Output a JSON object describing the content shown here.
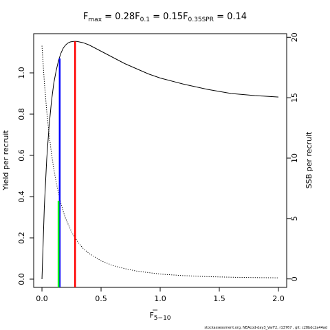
{
  "title": {
    "fmax_label": "F",
    "fmax_sub": "max",
    "fmax_value": " = 0.28",
    "f01_label": "F",
    "f01_sub": "0.1",
    "f01_value": " = 0.15",
    "fspr_label": "F",
    "fspr_sub": "0.35SPR",
    "fspr_value": " = 0.14"
  },
  "footer": "stockassessment.org, NEAcod-day3_VarF2, r13767 , git: c28bdc2a44ad",
  "chart_data": {
    "type": "line",
    "xlabel": "F",
    "xlabel_sub": "5−10",
    "ylabel": "Yield per recruit",
    "y2label": "SSB per recruit",
    "xlim": [
      -0.07,
      2.07
    ],
    "ylim": [
      -0.04,
      1.19
    ],
    "y2lim": [
      -0.7,
      20.3
    ],
    "x_ticks": [
      0,
      0.5,
      1,
      1.5,
      2
    ],
    "x_tick_labels": [
      "0.0",
      "0.5",
      "1.0",
      "1.5",
      "2.0"
    ],
    "y_ticks": [
      0,
      0.2,
      0.4,
      0.6,
      0.8,
      1.0
    ],
    "y_tick_labels": [
      "0.0",
      "0.2",
      "0.4",
      "0.6",
      "0.8",
      "1.0"
    ],
    "y2_ticks": [
      0,
      5,
      10,
      15,
      20
    ],
    "y2_tick_labels": [
      "0",
      "5",
      "10",
      "15",
      "20"
    ],
    "grid": false,
    "series": [
      {
        "axis": "left",
        "line": "solid",
        "color": "#000000",
        "x": [
          0,
          0.02,
          0.04,
          0.06,
          0.08,
          0.1,
          0.12,
          0.14,
          0.16,
          0.18,
          0.2,
          0.22,
          0.24,
          0.26,
          0.28,
          0.3,
          0.35,
          0.4,
          0.45,
          0.5,
          0.6,
          0.7,
          0.8,
          0.9,
          1.0,
          1.2,
          1.4,
          1.6,
          1.8,
          2.0
        ],
        "values": [
          0,
          0.35,
          0.58,
          0.74,
          0.86,
          0.95,
          1.01,
          1.06,
          1.095,
          1.12,
          1.135,
          1.145,
          1.15,
          1.152,
          1.153,
          1.152,
          1.146,
          1.135,
          1.12,
          1.105,
          1.075,
          1.045,
          1.02,
          0.995,
          0.975,
          0.945,
          0.92,
          0.9,
          0.89,
          0.883
        ]
      },
      {
        "axis": "right",
        "line": "dotted",
        "color": "#000000",
        "x": [
          0,
          0.02,
          0.04,
          0.06,
          0.08,
          0.1,
          0.12,
          0.14,
          0.16,
          0.18,
          0.2,
          0.25,
          0.3,
          0.35,
          0.4,
          0.5,
          0.6,
          0.7,
          0.8,
          1.0,
          1.2,
          1.4,
          1.6,
          1.8,
          2.0
        ],
        "values": [
          19.3,
          16.3,
          13.9,
          12.0,
          10.4,
          9.1,
          8.0,
          7.1,
          6.3,
          5.6,
          5.0,
          3.9,
          3.1,
          2.5,
          2.1,
          1.5,
          1.1,
          0.85,
          0.65,
          0.4,
          0.27,
          0.19,
          0.14,
          0.11,
          0.09
        ]
      }
    ],
    "reference_lines": [
      {
        "name": "Fmax",
        "x": 0.28,
        "y_top": 1.153,
        "color": "#ff0000"
      },
      {
        "name": "F0.1",
        "x": 0.15,
        "y_top": 1.07,
        "color": "#0000ff"
      },
      {
        "name": "F0.35SPR",
        "x": 0.14,
        "y_top": 0.38,
        "color": "#00ff00"
      }
    ]
  }
}
